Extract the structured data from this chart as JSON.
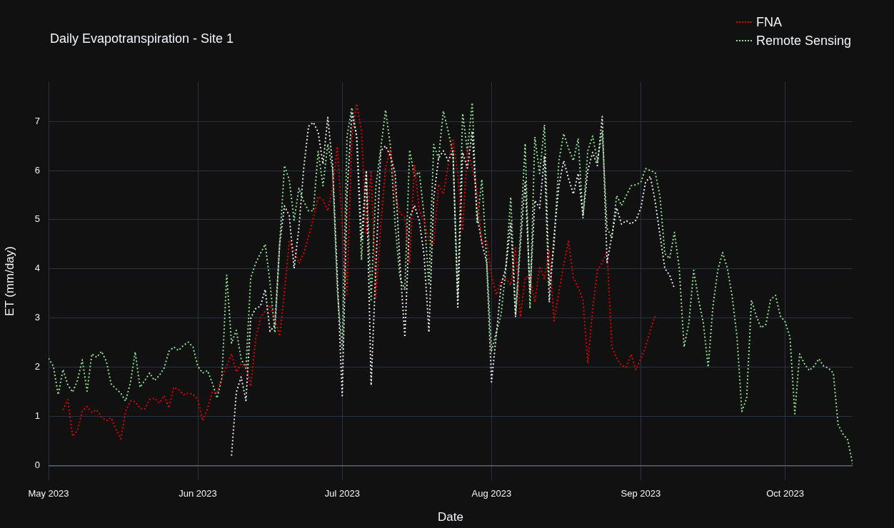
{
  "chart_data": {
    "type": "line",
    "title": "Daily Evapotranspiration - Site 1",
    "xlabel": "Date",
    "ylabel": "ET (mm/day)",
    "x": [
      "2023-05-01",
      "2023-05-02",
      "2023-05-03",
      "2023-05-04",
      "2023-05-05",
      "2023-05-06",
      "2023-05-07",
      "2023-05-08",
      "2023-05-09",
      "2023-05-10",
      "2023-05-11",
      "2023-05-12",
      "2023-05-13",
      "2023-05-14",
      "2023-05-15",
      "2023-05-16",
      "2023-05-17",
      "2023-05-18",
      "2023-05-19",
      "2023-05-20",
      "2023-05-21",
      "2023-05-22",
      "2023-05-23",
      "2023-05-24",
      "2023-05-25",
      "2023-05-26",
      "2023-05-27",
      "2023-05-28",
      "2023-05-29",
      "2023-05-30",
      "2023-05-31",
      "2023-06-01",
      "2023-06-02",
      "2023-06-03",
      "2023-06-04",
      "2023-06-05",
      "2023-06-06",
      "2023-06-07",
      "2023-06-08",
      "2023-06-09",
      "2023-06-10",
      "2023-06-11",
      "2023-06-12",
      "2023-06-13",
      "2023-06-14",
      "2023-06-15",
      "2023-06-16",
      "2023-06-17",
      "2023-06-18",
      "2023-06-19",
      "2023-06-20",
      "2023-06-21",
      "2023-06-22",
      "2023-06-23",
      "2023-06-24",
      "2023-06-25",
      "2023-06-26",
      "2023-06-27",
      "2023-06-28",
      "2023-06-29",
      "2023-06-30",
      "2023-07-01",
      "2023-07-02",
      "2023-07-03",
      "2023-07-04",
      "2023-07-05",
      "2023-07-06",
      "2023-07-07",
      "2023-07-08",
      "2023-07-09",
      "2023-07-10",
      "2023-07-11",
      "2023-07-12",
      "2023-07-13",
      "2023-07-14",
      "2023-07-15",
      "2023-07-16",
      "2023-07-17",
      "2023-07-18",
      "2023-07-19",
      "2023-07-20",
      "2023-07-21",
      "2023-07-22",
      "2023-07-23",
      "2023-07-24",
      "2023-07-25",
      "2023-07-26",
      "2023-07-27",
      "2023-07-28",
      "2023-07-29",
      "2023-07-30",
      "2023-07-31",
      "2023-08-01",
      "2023-08-02",
      "2023-08-03",
      "2023-08-04",
      "2023-08-05",
      "2023-08-06",
      "2023-08-07",
      "2023-08-08",
      "2023-08-09",
      "2023-08-10",
      "2023-08-11",
      "2023-08-12",
      "2023-08-13",
      "2023-08-14",
      "2023-08-15",
      "2023-08-16",
      "2023-08-17",
      "2023-08-18",
      "2023-08-19",
      "2023-08-20",
      "2023-08-21",
      "2023-08-22",
      "2023-08-23",
      "2023-08-24",
      "2023-08-25",
      "2023-08-26",
      "2023-08-27",
      "2023-08-28",
      "2023-08-29",
      "2023-08-30",
      "2023-08-31",
      "2023-09-01",
      "2023-09-02",
      "2023-09-03",
      "2023-09-04",
      "2023-09-05",
      "2023-09-06",
      "2023-09-07",
      "2023-09-08",
      "2023-09-09",
      "2023-09-10",
      "2023-09-11",
      "2023-09-12",
      "2023-09-13",
      "2023-09-14",
      "2023-09-15",
      "2023-09-16",
      "2023-09-17",
      "2023-09-18",
      "2023-09-19",
      "2023-09-20",
      "2023-09-21",
      "2023-09-22",
      "2023-09-23",
      "2023-09-24",
      "2023-09-25",
      "2023-09-26",
      "2023-09-27",
      "2023-09-28",
      "2023-09-29",
      "2023-09-30",
      "2023-10-01",
      "2023-10-02",
      "2023-10-03",
      "2023-10-04",
      "2023-10-05",
      "2023-10-06",
      "2023-10-07",
      "2023-10-08",
      "2023-10-09",
      "2023-10-10",
      "2023-10-11",
      "2023-10-12",
      "2023-10-13",
      "2023-10-14",
      "2023-10-15"
    ],
    "series": [
      {
        "color": "#e6e6ef",
        "values": [
          null,
          null,
          null,
          null,
          null,
          null,
          null,
          null,
          null,
          null,
          null,
          null,
          null,
          null,
          null,
          null,
          null,
          null,
          null,
          null,
          null,
          null,
          null,
          null,
          null,
          null,
          null,
          null,
          null,
          null,
          null,
          null,
          null,
          null,
          null,
          null,
          null,
          null,
          0.2,
          1.49,
          1.8,
          1.32,
          3.0,
          3.19,
          3.24,
          3.58,
          2.73,
          2.85,
          4.5,
          5.28,
          5.08,
          4.01,
          4.84,
          6.05,
          6.9,
          6.98,
          6.78,
          6.13,
          7.08,
          6.1,
          3.77,
          1.42,
          5.54,
          7.16,
          6.7,
          4.58,
          6.0,
          1.63,
          4.08,
          6.4,
          6.5,
          6.3,
          5.94,
          4.08,
          2.61,
          5.04,
          5.29,
          4.98,
          4.28,
          2.71,
          5.44,
          6.25,
          6.4,
          6.2,
          6.4,
          3.22,
          6.37,
          6.05,
          6.8,
          5.09,
          4.53,
          4.13,
          1.7,
          2.66,
          3.67,
          4.03,
          4.93,
          3.02,
          4.48,
          5.79,
          3.52,
          5.39,
          5.24,
          6.3,
          3.32,
          4.68,
          5.69,
          6.2,
          5.84,
          5.52,
          5.94,
          5.09,
          6.0,
          6.37,
          6.1,
          7.1,
          4.13,
          4.68,
          5.24,
          4.91,
          4.98,
          4.91,
          4.99,
          5.23,
          5.76,
          5.88,
          5.37,
          4.69,
          4.01,
          3.87,
          3.6,
          null,
          null,
          null,
          null,
          null,
          null,
          null,
          null,
          null,
          null,
          null,
          null,
          null,
          null,
          null,
          null,
          null,
          null,
          null,
          null,
          null,
          null,
          null,
          null,
          null,
          null,
          null,
          null,
          null,
          null,
          null,
          null,
          null,
          null,
          null,
          null,
          null
        ]
      },
      {
        "name": "FNA",
        "color": "#e00000",
        "values": [
          null,
          null,
          null,
          1.13,
          1.34,
          0.59,
          0.71,
          1.1,
          1.2,
          1.08,
          1.13,
          0.98,
          0.91,
          0.97,
          0.74,
          0.54,
          1.1,
          1.31,
          1.3,
          1.16,
          1.15,
          1.34,
          1.37,
          1.27,
          1.42,
          1.17,
          1.59,
          1.54,
          1.44,
          1.47,
          1.45,
          1.34,
          0.91,
          1.15,
          1.49,
          1.47,
          1.78,
          2.02,
          2.27,
          1.9,
          2.07,
          2.02,
          1.61,
          2.56,
          3.0,
          3.14,
          3.26,
          3.0,
          2.63,
          3.53,
          4.55,
          4.4,
          4.11,
          4.31,
          4.65,
          5.03,
          5.47,
          5.4,
          5.18,
          5.67,
          6.49,
          4.88,
          3.49,
          6.7,
          7.36,
          6.8,
          4.73,
          6.0,
          3.42,
          4.88,
          6.05,
          6.45,
          5.49,
          5.14,
          5.04,
          4.13,
          6.12,
          5.19,
          4.98,
          4.58,
          4.5,
          5.72,
          5.52,
          6.1,
          6.65,
          5.94,
          4.78,
          6.45,
          6.05,
          5.59,
          4.53,
          4.58,
          3.87,
          3.47,
          3.77,
          3.8,
          3.67,
          4.43,
          3.02,
          3.82,
          3.85,
          3.32,
          4.05,
          3.8,
          4.38,
          2.94,
          3.52,
          4.08,
          4.56,
          3.82,
          3.62,
          3.37,
          2.08,
          3.17,
          3.97,
          4.13,
          4.35,
          2.41,
          2.18,
          2.03,
          2.0,
          2.26,
          1.95,
          2.17,
          2.41,
          2.75,
          3.04,
          null,
          null,
          null,
          null,
          null,
          null,
          null,
          null,
          null,
          null,
          null,
          null,
          null,
          null,
          null,
          null,
          null,
          null,
          null,
          null,
          null,
          null,
          null,
          null,
          null,
          null,
          null,
          null,
          null,
          null,
          null,
          null,
          null,
          null,
          null,
          null,
          null,
          null,
          null,
          null,
          null
        ]
      },
      {
        "name": "Remote Sensing",
        "color": "#8fe08f",
        "values": [
          2.18,
          2.02,
          1.44,
          1.95,
          1.64,
          1.49,
          1.73,
          2.15,
          1.51,
          2.27,
          2.2,
          2.32,
          2.12,
          1.66,
          1.56,
          1.47,
          1.31,
          1.68,
          2.31,
          1.59,
          1.73,
          1.88,
          1.73,
          1.83,
          1.98,
          2.32,
          2.41,
          2.34,
          2.44,
          2.51,
          2.41,
          2.02,
          1.88,
          1.93,
          1.68,
          1.37,
          1.78,
          3.87,
          2.49,
          2.75,
          2.17,
          1.98,
          3.82,
          4.11,
          4.31,
          4.5,
          3.72,
          2.7,
          4.5,
          6.1,
          5.81,
          4.99,
          5.64,
          5.37,
          5.18,
          5.18,
          6.39,
          5.69,
          6.54,
          6.0,
          3.53,
          2.36,
          6.7,
          7.28,
          6.7,
          4.18,
          5.94,
          3.37,
          5.69,
          6.45,
          7.23,
          6.5,
          4.88,
          3.82,
          3.57,
          6.42,
          5.89,
          5.97,
          5.09,
          3.67,
          6.53,
          6.25,
          7.21,
          6.8,
          6.35,
          3.42,
          7.16,
          6.4,
          7.38,
          4.93,
          5.82,
          4.18,
          2.33,
          2.71,
          3.07,
          4.03,
          5.46,
          3.07,
          4.68,
          6.55,
          3.19,
          6.68,
          5.94,
          6.93,
          3.67,
          4.48,
          6.2,
          6.75,
          6.45,
          6.2,
          6.65,
          5.04,
          6.4,
          6.7,
          6.2,
          6.8,
          4.83,
          4.63,
          5.49,
          5.29,
          5.49,
          5.69,
          5.71,
          5.76,
          6.04,
          6.0,
          5.96,
          5.47,
          4.31,
          4.21,
          4.74,
          4.01,
          2.41,
          2.9,
          3.97,
          3.38,
          2.9,
          2.0,
          3.24,
          3.97,
          4.33,
          4.01,
          3.43,
          2.61,
          1.1,
          1.37,
          3.36,
          3.04,
          2.8,
          2.87,
          3.38,
          3.46,
          3.04,
          2.92,
          2.61,
          1.05,
          2.27,
          2.07,
          1.93,
          2.02,
          2.17,
          2.02,
          1.98,
          1.88,
          0.83,
          0.64,
          0.52,
          0.03
        ]
      }
    ],
    "xlim": [
      "2023-05-01",
      "2023-10-15"
    ],
    "xticks": [
      {
        "value": "2023-05-01",
        "label": "May 2023"
      },
      {
        "value": "2023-06-01",
        "label": "Jun 2023"
      },
      {
        "value": "2023-07-01",
        "label": "Jul 2023"
      },
      {
        "value": "2023-08-01",
        "label": "Aug 2023"
      },
      {
        "value": "2023-09-01",
        "label": "Sep 2023"
      },
      {
        "value": "2023-10-01",
        "label": "Oct 2023"
      }
    ],
    "ylim": [
      -0.3,
      7.8
    ],
    "yticks": [
      0,
      1,
      2,
      3,
      4,
      5,
      6,
      7
    ],
    "grid": true,
    "legend": "top right",
    "marker": "none",
    "line_style": "dotted"
  }
}
